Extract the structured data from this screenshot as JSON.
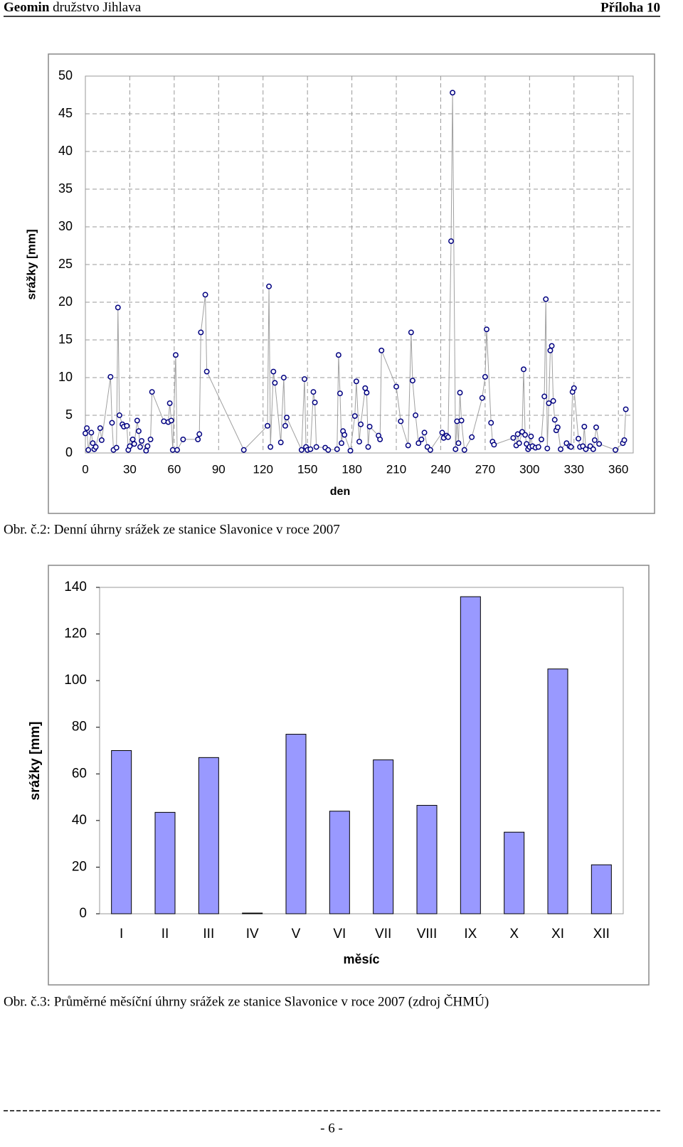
{
  "header": {
    "org_bold": "Geomin",
    "org": "družstvo Jihlava",
    "appendix": "Příloha 10"
  },
  "chart_data": [
    {
      "type": "scatter",
      "x_label": "den",
      "y_label": "srážky [mm]",
      "caption": "Obr. č.2: Denní úhrny srážek ze stanice Slavonice v roce 2007",
      "color": "#000080",
      "line_color": "#a0a0a0",
      "grid": true,
      "lines": true,
      "xlim": [
        0,
        370
      ],
      "xticks": [
        0,
        30,
        60,
        90,
        120,
        150,
        180,
        210,
        240,
        270,
        300,
        330,
        360
      ],
      "ylim": [
        0,
        50
      ],
      "yticks": [
        0,
        5,
        10,
        15,
        20,
        25,
        30,
        35,
        40,
        45,
        50
      ],
      "x": [
        0,
        1,
        2,
        4,
        5,
        6,
        7,
        10,
        11,
        17,
        18,
        19,
        21,
        22,
        23,
        25,
        26,
        28,
        29,
        30,
        32,
        33,
        35,
        36,
        37,
        38,
        41,
        42,
        44,
        45,
        53,
        56,
        57,
        58,
        59,
        61,
        62,
        66,
        76,
        77,
        78,
        81,
        82,
        107,
        123,
        124,
        125,
        127,
        128,
        132,
        134,
        135,
        136,
        146,
        148,
        149,
        150,
        152,
        154,
        155,
        156,
        162,
        164,
        170,
        171,
        172,
        173,
        174,
        175,
        179,
        182,
        183,
        185,
        186,
        189,
        190,
        191,
        192,
        198,
        199,
        200,
        210,
        213,
        218,
        220,
        221,
        223,
        225,
        227,
        229,
        231,
        233,
        241,
        242,
        244,
        245,
        247,
        248,
        250,
        251,
        252,
        253,
        254,
        256,
        261,
        268,
        270,
        271,
        274,
        275,
        276,
        289,
        291,
        292,
        293,
        295,
        296,
        297,
        298,
        299,
        300,
        301,
        302,
        304,
        306,
        308,
        310,
        311,
        312,
        313,
        314,
        315,
        316,
        317,
        318,
        319,
        321,
        325,
        327,
        328,
        329,
        330,
        333,
        334,
        336,
        337,
        338,
        341,
        343,
        344,
        345,
        347,
        358,
        363,
        364,
        365
      ],
      "values": [
        2.6,
        3.3,
        0.4,
        2.7,
        1.3,
        0.5,
        0.8,
        3.3,
        1.7,
        10.1,
        4.0,
        0.4,
        0.7,
        19.3,
        5.0,
        3.8,
        3.5,
        3.6,
        0.4,
        0.9,
        1.8,
        1.2,
        4.3,
        2.9,
        0.8,
        1.6,
        0.3,
        0.9,
        1.8,
        8.1,
        4.2,
        4.1,
        6.6,
        4.3,
        0.4,
        13.0,
        0.4,
        1.8,
        1.8,
        2.5,
        16.0,
        21.0,
        10.8,
        0.4,
        3.6,
        22.1,
        0.8,
        10.8,
        9.3,
        1.4,
        10.0,
        3.6,
        4.7,
        0.4,
        9.8,
        0.8,
        0.4,
        0.5,
        8.1,
        6.7,
        0.8,
        0.7,
        0.4,
        0.5,
        13.0,
        7.9,
        1.3,
        2.9,
        2.4,
        0.3,
        4.9,
        9.5,
        1.5,
        3.8,
        8.6,
        8.0,
        0.8,
        3.5,
        2.3,
        1.8,
        13.6,
        8.8,
        4.2,
        1.0,
        16.0,
        9.6,
        5.0,
        1.3,
        1.8,
        2.7,
        0.8,
        0.4,
        2.7,
        2.0,
        2.3,
        2.1,
        28.1,
        47.8,
        0.5,
        4.2,
        1.3,
        8.0,
        4.3,
        0.4,
        2.1,
        7.3,
        10.1,
        16.4,
        4.0,
        1.5,
        1.1,
        2.0,
        1.0,
        2.5,
        1.3,
        2.8,
        11.1,
        2.4,
        1.2,
        0.5,
        0.8,
        2.2,
        0.9,
        0.7,
        0.8,
        1.8,
        7.5,
        20.4,
        0.6,
        6.6,
        13.6,
        14.2,
        6.9,
        4.4,
        3.0,
        3.4,
        0.5,
        1.3,
        0.9,
        0.8,
        8.1,
        8.6,
        1.9,
        0.8,
        0.9,
        3.5,
        0.5,
        0.9,
        0.5,
        1.7,
        3.4,
        1.2,
        0.4,
        1.3,
        1.7,
        5.8
      ]
    },
    {
      "type": "bar",
      "x_label": "měsíc",
      "y_label": "srážky [mm]",
      "caption": "Obr. č.3: Průměrné měsíční úhrny srážek ze stanice Slavonice v roce 2007 (zdroj ČHMÚ)",
      "color": "#9999ff",
      "grid": false,
      "categories": [
        "I",
        "II",
        "III",
        "IV",
        "V",
        "VI",
        "VII",
        "VIII",
        "IX",
        "X",
        "XI",
        "XII"
      ],
      "values": [
        70,
        43.5,
        67,
        0.3,
        77,
        44,
        66,
        46.5,
        136,
        35,
        105,
        21
      ],
      "ylim": [
        0,
        140
      ],
      "yticks": [
        0,
        20,
        40,
        60,
        80,
        100,
        120,
        140
      ]
    }
  ],
  "footer": {
    "page": "- 6 -"
  }
}
